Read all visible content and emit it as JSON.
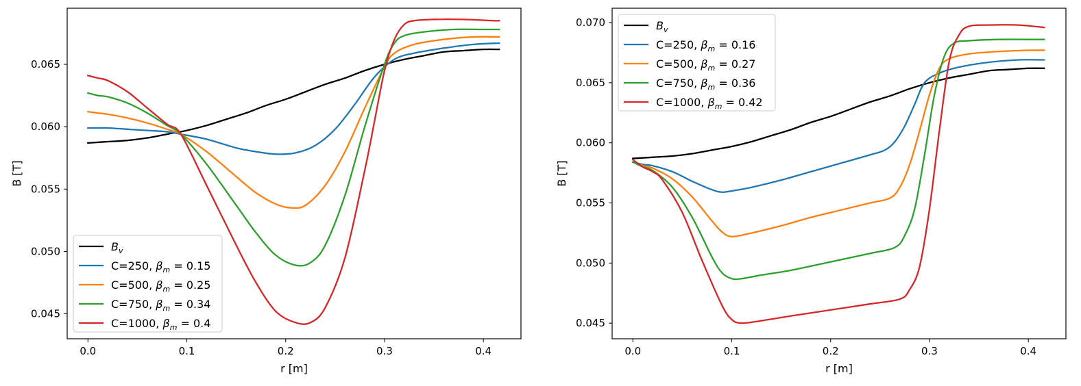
{
  "chart_data": [
    {
      "type": "line",
      "title": "",
      "xlabel": "r [m]",
      "ylabel": "B [T]",
      "xlim": [
        -0.021,
        0.438
      ],
      "ylim": [
        0.043,
        0.0695
      ],
      "xticks": [
        0.0,
        0.1,
        0.2,
        0.3,
        0.4
      ],
      "xtick_labels": [
        "0.0",
        "0.1",
        "0.2",
        "0.3",
        "0.4"
      ],
      "yticks": [
        0.045,
        0.05,
        0.055,
        0.06,
        0.065
      ],
      "ytick_labels": [
        "0.045",
        "0.050",
        "0.055",
        "0.060",
        "0.065"
      ],
      "grid": false,
      "legend_position": "lower-left",
      "series": [
        {
          "name": "Bv",
          "label": {
            "main": "B",
            "sub": "v",
            "rest": ""
          },
          "color": "#000000",
          "x": [
            0.0,
            0.02,
            0.04,
            0.06,
            0.08,
            0.1,
            0.12,
            0.14,
            0.16,
            0.18,
            0.2,
            0.22,
            0.24,
            0.26,
            0.28,
            0.3,
            0.32,
            0.34,
            0.36,
            0.38,
            0.4,
            0.416
          ],
          "y": [
            0.0587,
            0.0588,
            0.0589,
            0.0591,
            0.0594,
            0.0597,
            0.0601,
            0.0606,
            0.0611,
            0.0617,
            0.0622,
            0.0628,
            0.0634,
            0.0639,
            0.0645,
            0.065,
            0.0654,
            0.0657,
            0.066,
            0.0661,
            0.0662,
            0.0662
          ]
        },
        {
          "name": "C=250, βm = 0.15",
          "label": {
            "main": "C=250, ",
            "greek": "β",
            "sub": "m",
            "rest": " = 0.15"
          },
          "color": "#1f77b4",
          "x": [
            0.0,
            0.01,
            0.02,
            0.04,
            0.06,
            0.08,
            0.094,
            0.12,
            0.15,
            0.17,
            0.19,
            0.21,
            0.23,
            0.25,
            0.27,
            0.29,
            0.31,
            0.33,
            0.36,
            0.39,
            0.416
          ],
          "y": [
            0.0599,
            0.0599,
            0.0599,
            0.0598,
            0.0597,
            0.0596,
            0.0594,
            0.059,
            0.0583,
            0.058,
            0.0578,
            0.0579,
            0.0585,
            0.0598,
            0.0618,
            0.064,
            0.0654,
            0.0659,
            0.0663,
            0.0666,
            0.0667
          ]
        },
        {
          "name": "C=500, βm = 0.25",
          "label": {
            "main": "C=500, ",
            "greek": "β",
            "sub": "m",
            "rest": " = 0.25"
          },
          "color": "#ff7f0e",
          "x": [
            0.0,
            0.01,
            0.02,
            0.04,
            0.06,
            0.08,
            0.094,
            0.12,
            0.15,
            0.17,
            0.19,
            0.205,
            0.22,
            0.24,
            0.26,
            0.28,
            0.3,
            0.31,
            0.33,
            0.36,
            0.39,
            0.416
          ],
          "y": [
            0.0612,
            0.0611,
            0.061,
            0.0607,
            0.0603,
            0.0598,
            0.0594,
            0.058,
            0.056,
            0.0547,
            0.0538,
            0.0535,
            0.0537,
            0.0553,
            0.058,
            0.0615,
            0.0648,
            0.0659,
            0.0666,
            0.067,
            0.0672,
            0.0672
          ]
        },
        {
          "name": "C=750, βm = 0.34",
          "label": {
            "main": "C=750, ",
            "greek": "β",
            "sub": "m",
            "rest": " = 0.34"
          },
          "color": "#2ca02c",
          "x": [
            0.0,
            0.01,
            0.02,
            0.04,
            0.06,
            0.08,
            0.094,
            0.12,
            0.15,
            0.17,
            0.19,
            0.21,
            0.225,
            0.24,
            0.26,
            0.28,
            0.3,
            0.31,
            0.32,
            0.34,
            0.37,
            0.4,
            0.416
          ],
          "y": [
            0.0627,
            0.0625,
            0.0624,
            0.0619,
            0.0611,
            0.0601,
            0.0594,
            0.057,
            0.0537,
            0.0515,
            0.0497,
            0.0489,
            0.0491,
            0.0505,
            0.0545,
            0.06,
            0.065,
            0.0667,
            0.0673,
            0.0676,
            0.0678,
            0.0678,
            0.0678
          ]
        },
        {
          "name": "C=1000, βm = 0.4",
          "label": {
            "main": "C=1000, ",
            "greek": "β",
            "sub": "m",
            "rest": " = 0.4"
          },
          "color": "#d62728",
          "x": [
            0.0,
            0.01,
            0.02,
            0.04,
            0.06,
            0.08,
            0.094,
            0.12,
            0.15,
            0.17,
            0.19,
            0.21,
            0.225,
            0.24,
            0.26,
            0.28,
            0.29,
            0.3,
            0.31,
            0.32,
            0.33,
            0.35,
            0.38,
            0.41,
            0.416
          ],
          "y": [
            0.0641,
            0.0639,
            0.0637,
            0.0628,
            0.0615,
            0.0602,
            0.0594,
            0.0553,
            0.0505,
            0.0475,
            0.0452,
            0.0443,
            0.0443,
            0.0455,
            0.0495,
            0.0565,
            0.0605,
            0.0645,
            0.067,
            0.0682,
            0.0685,
            0.0686,
            0.0686,
            0.0685,
            0.0685
          ]
        }
      ]
    },
    {
      "type": "line",
      "title": "",
      "xlabel": "r [m]",
      "ylabel": "B [T]",
      "xlim": [
        -0.021,
        0.438
      ],
      "ylim": [
        0.0437,
        0.0712
      ],
      "xticks": [
        0.0,
        0.1,
        0.2,
        0.3,
        0.4
      ],
      "xtick_labels": [
        "0.0",
        "0.1",
        "0.2",
        "0.3",
        "0.4"
      ],
      "yticks": [
        0.045,
        0.05,
        0.055,
        0.06,
        0.065,
        0.07
      ],
      "ytick_labels": [
        "0.045",
        "0.050",
        "0.055",
        "0.060",
        "0.065",
        "0.070"
      ],
      "grid": false,
      "legend_position": "upper-left",
      "series": [
        {
          "name": "Bv",
          "label": {
            "main": "B",
            "sub": "v",
            "rest": ""
          },
          "color": "#000000",
          "x": [
            0.0,
            0.02,
            0.04,
            0.06,
            0.08,
            0.1,
            0.12,
            0.14,
            0.16,
            0.18,
            0.2,
            0.22,
            0.24,
            0.26,
            0.28,
            0.3,
            0.32,
            0.34,
            0.36,
            0.38,
            0.4,
            0.416
          ],
          "y": [
            0.0587,
            0.0588,
            0.0589,
            0.0591,
            0.0594,
            0.0597,
            0.0601,
            0.0606,
            0.0611,
            0.0617,
            0.0622,
            0.0628,
            0.0634,
            0.0639,
            0.0645,
            0.065,
            0.0654,
            0.0657,
            0.066,
            0.0661,
            0.0662,
            0.0662
          ]
        },
        {
          "name": "C=250, βm = 0.16",
          "label": {
            "main": "C=250, ",
            "greek": "β",
            "sub": "m",
            "rest": " = 0.16"
          },
          "color": "#1f77b4",
          "x": [
            0.0,
            0.01,
            0.02,
            0.04,
            0.06,
            0.08,
            0.09,
            0.1,
            0.12,
            0.15,
            0.18,
            0.21,
            0.24,
            0.255,
            0.265,
            0.275,
            0.285,
            0.295,
            0.31,
            0.33,
            0.36,
            0.39,
            0.416
          ],
          "y": [
            0.0584,
            0.0582,
            0.0581,
            0.0576,
            0.0568,
            0.0561,
            0.0559,
            0.056,
            0.0563,
            0.0569,
            0.0576,
            0.0583,
            0.059,
            0.0594,
            0.0601,
            0.0614,
            0.0632,
            0.065,
            0.0658,
            0.0663,
            0.0667,
            0.0669,
            0.0669
          ]
        },
        {
          "name": "C=500, βm = 0.27",
          "label": {
            "main": "C=500, ",
            "greek": "β",
            "sub": "m",
            "rest": " = 0.27"
          },
          "color": "#ff7f0e",
          "x": [
            0.0,
            0.01,
            0.02,
            0.04,
            0.06,
            0.08,
            0.09,
            0.1,
            0.12,
            0.15,
            0.18,
            0.21,
            0.24,
            0.26,
            0.27,
            0.28,
            0.29,
            0.3,
            0.31,
            0.32,
            0.34,
            0.37,
            0.4,
            0.416
          ],
          "y": [
            0.0584,
            0.0581,
            0.0579,
            0.057,
            0.0555,
            0.0535,
            0.0526,
            0.0522,
            0.0525,
            0.0531,
            0.0538,
            0.0544,
            0.055,
            0.0554,
            0.0563,
            0.0582,
            0.061,
            0.064,
            0.0662,
            0.067,
            0.0674,
            0.0676,
            0.0677,
            0.0677
          ]
        },
        {
          "name": "C=750, βm = 0.36",
          "label": {
            "main": "C=750, ",
            "greek": "β",
            "sub": "m",
            "rest": " = 0.36"
          },
          "color": "#2ca02c",
          "x": [
            0.0,
            0.01,
            0.02,
            0.04,
            0.06,
            0.08,
            0.09,
            0.1,
            0.11,
            0.13,
            0.16,
            0.2,
            0.24,
            0.265,
            0.275,
            0.285,
            0.295,
            0.305,
            0.315,
            0.325,
            0.34,
            0.37,
            0.4,
            0.416
          ],
          "y": [
            0.0584,
            0.058,
            0.0577,
            0.0563,
            0.0538,
            0.0505,
            0.0492,
            0.0487,
            0.0487,
            0.049,
            0.0494,
            0.0501,
            0.0508,
            0.0513,
            0.0523,
            0.0545,
            0.059,
            0.064,
            0.0672,
            0.0683,
            0.0685,
            0.0686,
            0.0686,
            0.0686
          ]
        },
        {
          "name": "C=1000, βm = 0.42",
          "label": {
            "main": "C=1000, ",
            "greek": "β",
            "sub": "m",
            "rest": " = 0.42"
          },
          "color": "#d62728",
          "x": [
            0.0,
            0.01,
            0.02,
            0.03,
            0.05,
            0.07,
            0.09,
            0.1,
            0.11,
            0.13,
            0.16,
            0.2,
            0.24,
            0.27,
            0.28,
            0.29,
            0.3,
            0.31,
            0.32,
            0.33,
            0.34,
            0.36,
            0.39,
            0.416
          ],
          "y": [
            0.0586,
            0.058,
            0.0576,
            0.0569,
            0.0542,
            0.0502,
            0.0465,
            0.0453,
            0.045,
            0.0452,
            0.0456,
            0.0461,
            0.0466,
            0.047,
            0.0478,
            0.0497,
            0.0545,
            0.061,
            0.0668,
            0.069,
            0.0697,
            0.0698,
            0.0698,
            0.0696
          ]
        }
      ]
    }
  ]
}
